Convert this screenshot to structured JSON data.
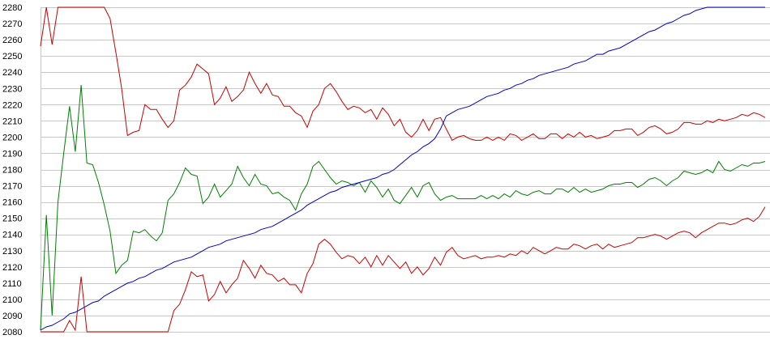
{
  "chart_data": {
    "type": "line",
    "title": "",
    "xlabel": "",
    "ylabel": "",
    "ylim": [
      2080,
      2280
    ],
    "y_ticks": [
      2080,
      2090,
      2100,
      2110,
      2120,
      2130,
      2140,
      2150,
      2160,
      2170,
      2180,
      2190,
      2200,
      2210,
      2220,
      2230,
      2240,
      2250,
      2260,
      2270,
      2280
    ],
    "grid": true,
    "legend": "none",
    "x_count": 126,
    "series": [
      {
        "color": "#cc0000",
        "values": [
          2256,
          2280,
          2257,
          2280,
          2280,
          2280,
          2280,
          2280,
          2280,
          2280,
          2280,
          2280,
          2273,
          2252,
          2230,
          2201,
          2203,
          2204,
          2220,
          2217,
          2217,
          2211,
          2206,
          2210,
          2229,
          2232,
          2237,
          2245,
          2242,
          2239,
          2220,
          2224,
          2231,
          2222,
          2225,
          2229,
          2240,
          2233,
          2227,
          2233,
          2226,
          2225,
          2219,
          2219,
          2215,
          2213,
          2206,
          2216,
          2220,
          2230,
          2233,
          2228,
          2222,
          2217,
          2219,
          2218,
          2215,
          2217,
          2211,
          2218,
          2214,
          2207,
          2211,
          2203,
          2200,
          2204,
          2211,
          2204,
          2211,
          2212,
          2205,
          2198,
          2200,
          2201,
          2199,
          2198,
          2198,
          2200,
          2198,
          2200,
          2198,
          2202,
          2201,
          2198,
          2200,
          2202,
          2199,
          2199,
          2202,
          2202,
          2199,
          2202,
          2200,
          2203,
          2200,
          2201,
          2199,
          2200,
          2201,
          2204,
          2204,
          2205,
          2205,
          2201,
          2203,
          2206,
          2207,
          2205,
          2202,
          2203,
          2205,
          2209,
          2209,
          2208,
          2208,
          2210,
          2209,
          2211,
          2210,
          2211,
          2212,
          2214,
          2213,
          2215,
          2214,
          2212
        ]
      },
      {
        "color": "#008000",
        "values": [
          2081,
          2152,
          2090,
          2160,
          2190,
          2219,
          2191,
          2232,
          2184,
          2183,
          2172,
          2158,
          2142,
          2116,
          2121,
          2124,
          2142,
          2141,
          2143,
          2139,
          2136,
          2141,
          2161,
          2165,
          2172,
          2181,
          2177,
          2176,
          2159,
          2163,
          2171,
          2163,
          2167,
          2171,
          2182,
          2175,
          2170,
          2177,
          2171,
          2170,
          2165,
          2166,
          2163,
          2161,
          2155,
          2165,
          2171,
          2182,
          2185,
          2180,
          2175,
          2171,
          2173,
          2172,
          2170,
          2172,
          2166,
          2173,
          2169,
          2163,
          2168,
          2161,
          2159,
          2164,
          2169,
          2163,
          2170,
          2172,
          2165,
          2161,
          2163,
          2164,
          2162,
          2162,
          2162,
          2162,
          2164,
          2162,
          2164,
          2162,
          2165,
          2163,
          2167,
          2165,
          2164,
          2166,
          2167,
          2165,
          2165,
          2168,
          2168,
          2166,
          2169,
          2166,
          2168,
          2166,
          2167,
          2168,
          2170,
          2171,
          2171,
          2172,
          2172,
          2169,
          2171,
          2174,
          2175,
          2173,
          2170,
          2173,
          2175,
          2179,
          2178,
          2177,
          2178,
          2180,
          2178,
          2185,
          2180,
          2179,
          2181,
          2183,
          2182,
          2184,
          2184,
          2185
        ]
      },
      {
        "color": "#0000cc",
        "values": [
          2081,
          2083,
          2084,
          2086,
          2088,
          2091,
          2092,
          2094,
          2096,
          2098,
          2099,
          2102,
          2104,
          2106,
          2108,
          2110,
          2111,
          2113,
          2114,
          2116,
          2118,
          2119,
          2121,
          2123,
          2124,
          2125,
          2126,
          2128,
          2130,
          2132,
          2133,
          2134,
          2136,
          2137,
          2138,
          2139,
          2140,
          2141,
          2143,
          2144,
          2145,
          2147,
          2149,
          2151,
          2153,
          2155,
          2158,
          2160,
          2162,
          2164,
          2166,
          2167,
          2169,
          2170,
          2171,
          2172,
          2173,
          2174,
          2175,
          2177,
          2178,
          2180,
          2183,
          2186,
          2189,
          2191,
          2194,
          2196,
          2199,
          2205,
          2213,
          2215,
          2217,
          2218,
          2219,
          2221,
          2223,
          2225,
          2226,
          2227,
          2229,
          2230,
          2232,
          2233,
          2235,
          2236,
          2238,
          2239,
          2240,
          2241,
          2242,
          2243,
          2245,
          2246,
          2247,
          2249,
          2251,
          2251,
          2253,
          2254,
          2255,
          2257,
          2259,
          2261,
          2263,
          2265,
          2266,
          2268,
          2270,
          2271,
          2273,
          2275,
          2276,
          2278,
          2279,
          2280,
          2280,
          2280,
          2280,
          2280,
          2280,
          2280,
          2280,
          2280,
          2280,
          2280
        ]
      },
      {
        "color": "#cc0000",
        "values": [
          2080,
          2080,
          2080,
          2080,
          2080,
          2087,
          2081,
          2114,
          2080,
          2080,
          2080,
          2080,
          2080,
          2080,
          2080,
          2080,
          2080,
          2080,
          2080,
          2080,
          2080,
          2080,
          2080,
          2093,
          2097,
          2106,
          2117,
          2114,
          2115,
          2099,
          2103,
          2111,
          2104,
          2109,
          2113,
          2124,
          2119,
          2113,
          2121,
          2116,
          2115,
          2111,
          2113,
          2109,
          2109,
          2104,
          2116,
          2122,
          2134,
          2137,
          2134,
          2129,
          2125,
          2127,
          2126,
          2122,
          2126,
          2120,
          2127,
          2121,
          2127,
          2123,
          2119,
          2123,
          2116,
          2120,
          2115,
          2119,
          2126,
          2121,
          2129,
          2132,
          2127,
          2125,
          2126,
          2127,
          2125,
          2126,
          2126,
          2127,
          2126,
          2128,
          2127,
          2130,
          2128,
          2132,
          2130,
          2128,
          2130,
          2132,
          2131,
          2131,
          2134,
          2133,
          2131,
          2133,
          2134,
          2131,
          2134,
          2132,
          2133,
          2134,
          2135,
          2138,
          2138,
          2139,
          2140,
          2139,
          2137,
          2139,
          2141,
          2142,
          2141,
          2138,
          2141,
          2143,
          2145,
          2147,
          2147,
          2146,
          2147,
          2149,
          2150,
          2148,
          2151,
          2157
        ]
      }
    ]
  }
}
